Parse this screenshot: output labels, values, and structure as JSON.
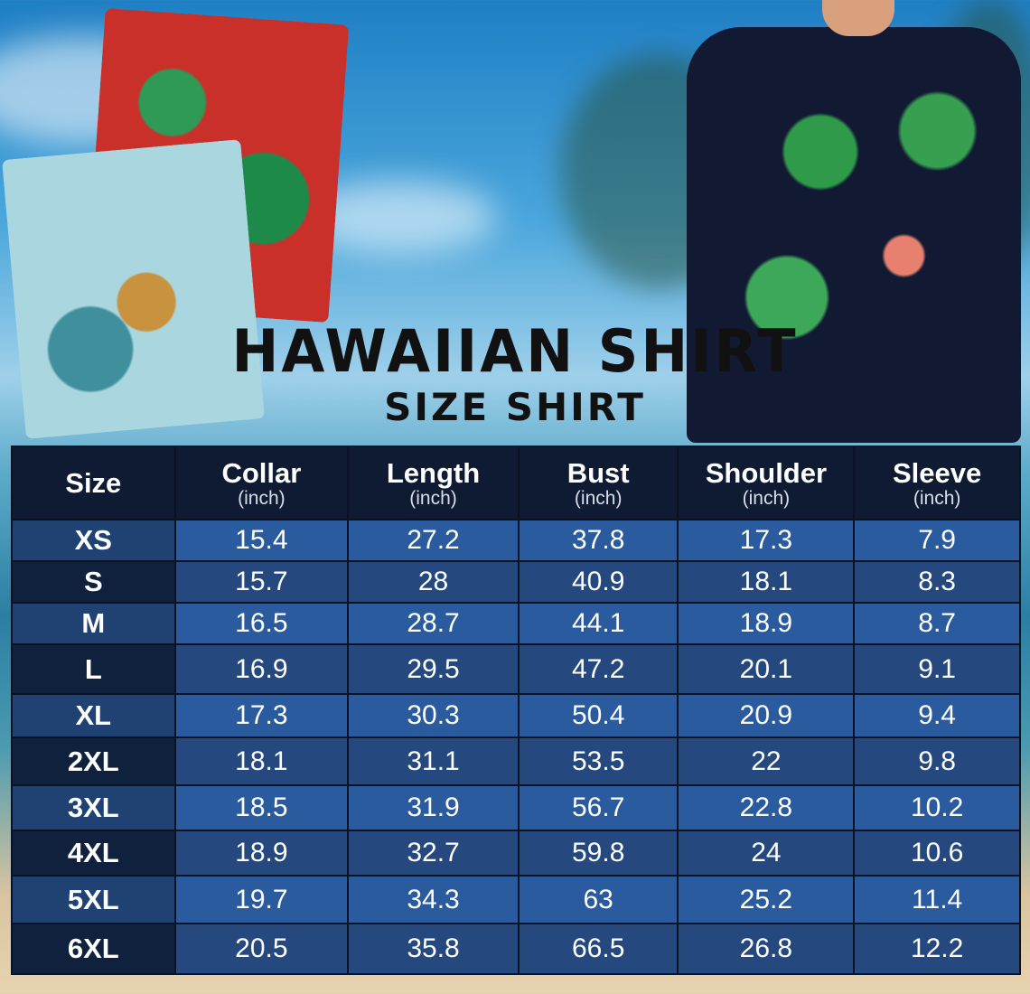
{
  "title": "HAWAIIAN SHIRT",
  "subtitle": "SIZE SHIRT",
  "table": {
    "headers": [
      {
        "label": "Size",
        "unit": ""
      },
      {
        "label": "Collar",
        "unit": "(inch)"
      },
      {
        "label": "Length",
        "unit": "(inch)"
      },
      {
        "label": "Bust",
        "unit": "(inch)"
      },
      {
        "label": "Shoulder",
        "unit": "(inch)"
      },
      {
        "label": "Sleeve",
        "unit": "(inch)"
      }
    ],
    "rows": [
      [
        "XS",
        "15.4",
        "27.2",
        "37.8",
        "17.3",
        "7.9"
      ],
      [
        "S",
        "15.7",
        "28",
        "40.9",
        "18.1",
        "8.3"
      ],
      [
        "M",
        "16.5",
        "28.7",
        "44.1",
        "18.9",
        "8.7"
      ],
      [
        "L",
        "16.9",
        "29.5",
        "47.2",
        "20.1",
        "9.1"
      ],
      [
        "XL",
        "17.3",
        "30.3",
        "50.4",
        "20.9",
        "9.4"
      ],
      [
        "2XL",
        "18.1",
        "31.1",
        "53.5",
        "22",
        "9.8"
      ],
      [
        "3XL",
        "18.5",
        "31.9",
        "56.7",
        "22.8",
        "10.2"
      ],
      [
        "4XL",
        "18.9",
        "32.7",
        "59.8",
        "24",
        "10.6"
      ],
      [
        "5XL",
        "19.7",
        "34.3",
        "63",
        "25.2",
        "11.4"
      ],
      [
        "6XL",
        "20.5",
        "35.8",
        "66.5",
        "26.8",
        "12.2"
      ]
    ]
  },
  "colors": {
    "header": "#0e1b33",
    "row_light": "#2b5b9f",
    "row_dark": "#25497f"
  }
}
